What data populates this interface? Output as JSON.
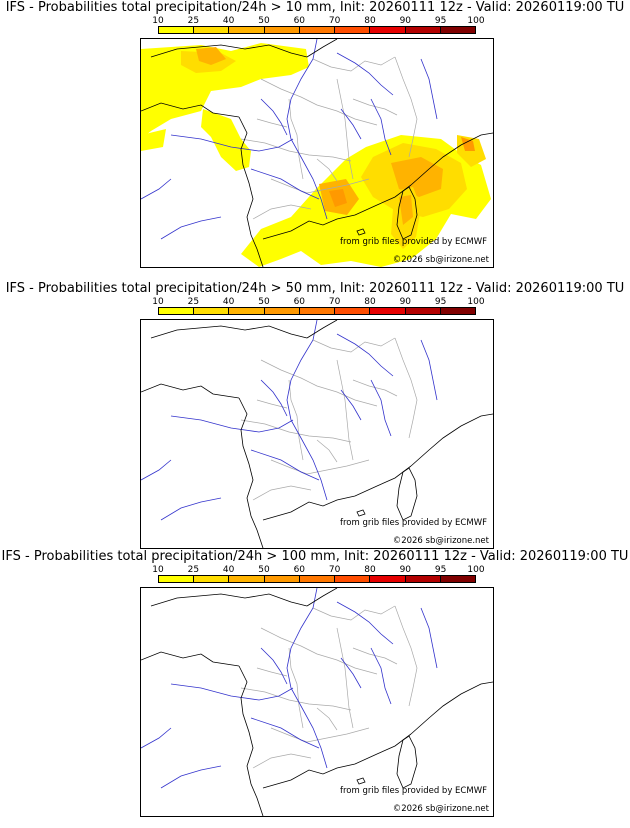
{
  "colorbar": {
    "labels": [
      "10",
      "25",
      "40",
      "50",
      "60",
      "70",
      "80",
      "90",
      "95",
      "100"
    ],
    "colors": [
      "#ffff00",
      "#ffdd00",
      "#ffb300",
      "#ff9900",
      "#ff7700",
      "#ff4d00",
      "#e60000",
      "#b30000",
      "#800000"
    ]
  },
  "panels": [
    {
      "title": "IFS - Probabilities total precipitation/24h > 10 mm, Init: 20260111 12z - Valid: 20260119:00 TU",
      "has_precip": true
    },
    {
      "title": "IFS - Probabilities total precipitation/24h > 50 mm, Init: 20260111 12z - Valid: 20260119:00 TU",
      "has_precip": false
    },
    {
      "title": "IFS - Probabilities total precipitation/24h > 100 mm, Init: 20260111 12z - Valid: 20260119:00 TU",
      "has_precip": false
    }
  ],
  "credits": {
    "source": "from grib files provided by ECMWF",
    "copyright": "©2026 sb@irizone.net"
  },
  "colors": {
    "rivers": "#3333cc",
    "borders": "#aaaaaa",
    "coast": "#000000"
  }
}
